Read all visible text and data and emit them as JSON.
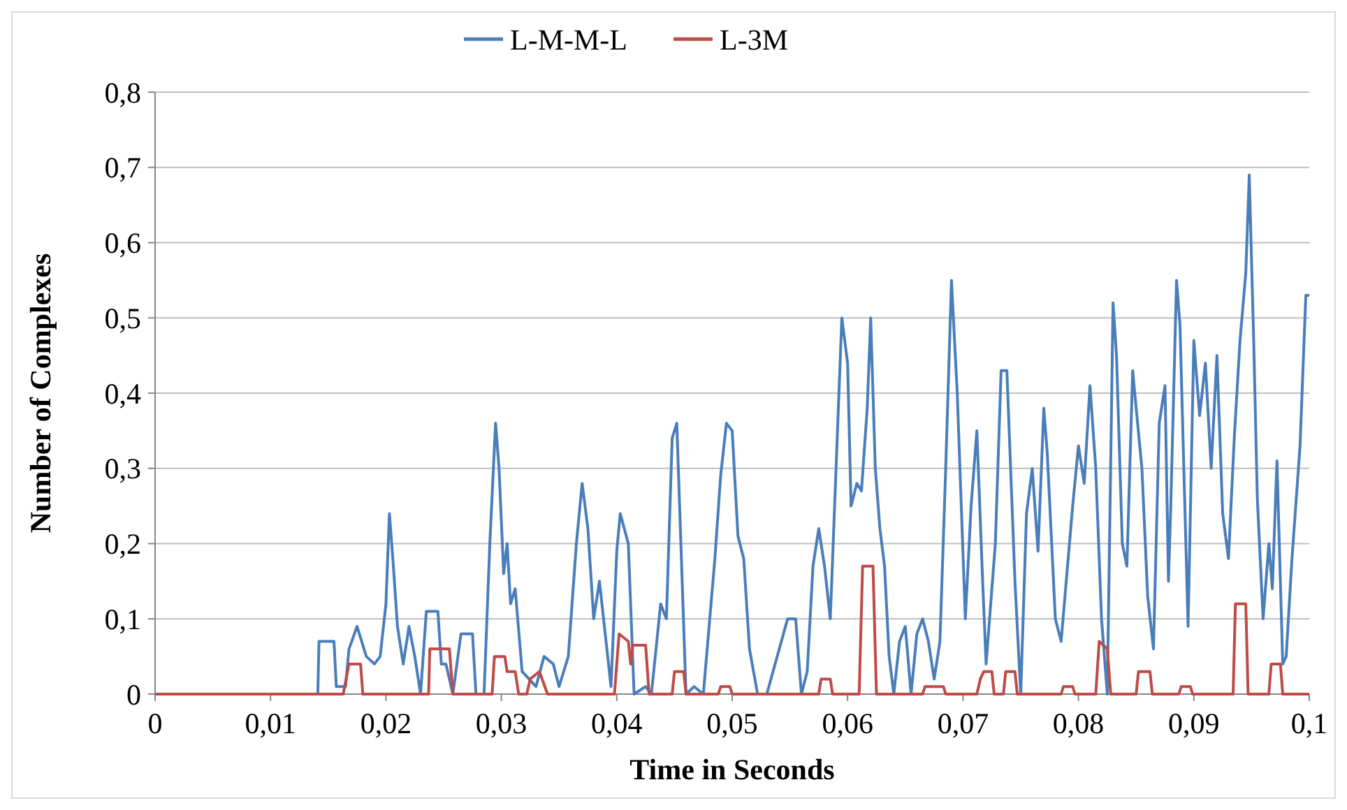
{
  "chart_data": {
    "type": "line",
    "xlabel": "Time in Seconds",
    "ylabel": "Number of Complexes",
    "xlim": [
      0,
      0.1
    ],
    "xticks": [
      0,
      {
        "value": 0.01,
        "label": "0,01"
      },
      {
        "value": 0.02,
        "label": "0,02"
      },
      {
        "value": 0.03,
        "label": "0,03"
      },
      {
        "value": 0.04,
        "label": "0,04"
      },
      {
        "value": 0.05,
        "label": "0,05"
      },
      {
        "value": 0.06,
        "label": "0,06"
      },
      {
        "value": 0.07,
        "label": "0,07"
      },
      {
        "value": 0.08,
        "label": "0,08"
      },
      {
        "value": 0.09,
        "label": "0,09"
      },
      {
        "value": 0.1,
        "label": "0,1"
      }
    ],
    "ylim": [
      0,
      0.8
    ],
    "yticks": [
      0,
      {
        "value": 0.1,
        "label": "0,1"
      },
      {
        "value": 0.2,
        "label": "0,2"
      },
      {
        "value": 0.3,
        "label": "0,3"
      },
      {
        "value": 0.4,
        "label": "0,4"
      },
      {
        "value": 0.5,
        "label": "0,5"
      },
      {
        "value": 0.6,
        "label": "0,6"
      },
      {
        "value": 0.7,
        "label": "0,7"
      },
      {
        "value": 0.8,
        "label": "0,8"
      }
    ],
    "grid": "y",
    "legend": "top",
    "line_style": "solid",
    "series": [
      {
        "name": "L-M-M-L",
        "color": "#4a7ebb",
        "x": [
          0,
          0.0141,
          0.0142,
          0.0155,
          0.0157,
          0.0165,
          0.0168,
          0.0175,
          0.0183,
          0.019,
          0.0195,
          0.02,
          0.0203,
          0.0206,
          0.021,
          0.0215,
          0.022,
          0.0225,
          0.023,
          0.0235,
          0.0245,
          0.0248,
          0.0252,
          0.0258,
          0.0265,
          0.0275,
          0.0278,
          0.0285,
          0.029,
          0.0295,
          0.0298,
          0.0302,
          0.0305,
          0.0308,
          0.0312,
          0.0318,
          0.033,
          0.0337,
          0.0345,
          0.035,
          0.0358,
          0.0365,
          0.037,
          0.0375,
          0.038,
          0.0385,
          0.039,
          0.0395,
          0.04,
          0.0403,
          0.041,
          0.0415,
          0.0425,
          0.043,
          0.0438,
          0.0443,
          0.0448,
          0.0452,
          0.0456,
          0.046,
          0.0467,
          0.0475,
          0.0485,
          0.049,
          0.0495,
          0.05,
          0.0505,
          0.051,
          0.0515,
          0.0522,
          0.053,
          0.0548,
          0.0555,
          0.056,
          0.0565,
          0.057,
          0.0575,
          0.058,
          0.0585,
          0.059,
          0.0595,
          0.06,
          0.0603,
          0.0608,
          0.0612,
          0.0617,
          0.062,
          0.0624,
          0.0628,
          0.0632,
          0.0636,
          0.064,
          0.0645,
          0.065,
          0.0655,
          0.066,
          0.0665,
          0.067,
          0.0675,
          0.068,
          0.0685,
          0.069,
          0.0695,
          0.0702,
          0.0707,
          0.0712,
          0.0717,
          0.072,
          0.0728,
          0.0733,
          0.0738,
          0.0745,
          0.075,
          0.0755,
          0.076,
          0.0765,
          0.077,
          0.0773,
          0.078,
          0.0785,
          0.0795,
          0.08,
          0.0805,
          0.081,
          0.0815,
          0.082,
          0.0825,
          0.083,
          0.0833,
          0.0838,
          0.0842,
          0.0847,
          0.085,
          0.0855,
          0.086,
          0.0865,
          0.087,
          0.0875,
          0.0878,
          0.088,
          0.0885,
          0.0888,
          0.0895,
          0.09,
          0.0905,
          0.091,
          0.0915,
          0.092,
          0.0925,
          0.093,
          0.0935,
          0.094,
          0.0945,
          0.0948,
          0.0952,
          0.0955,
          0.096,
          0.0965,
          0.0968,
          0.0972,
          0.0977,
          0.098,
          0.0985,
          0.0992,
          0.0997,
          0.1
        ],
        "values": [
          0,
          0,
          0.07,
          0.07,
          0.01,
          0.01,
          0.06,
          0.09,
          0.05,
          0.04,
          0.05,
          0.12,
          0.24,
          0.18,
          0.09,
          0.04,
          0.09,
          0.05,
          0,
          0.11,
          0.11,
          0.04,
          0.04,
          0,
          0.08,
          0.08,
          0,
          0,
          0.2,
          0.36,
          0.3,
          0.16,
          0.2,
          0.12,
          0.14,
          0.03,
          0.01,
          0.05,
          0.04,
          0.01,
          0.05,
          0.2,
          0.28,
          0.22,
          0.1,
          0.15,
          0.08,
          0.01,
          0.19,
          0.24,
          0.2,
          0,
          0.01,
          0,
          0.12,
          0.1,
          0.34,
          0.36,
          0.18,
          0,
          0.01,
          0,
          0.18,
          0.29,
          0.36,
          0.35,
          0.21,
          0.18,
          0.06,
          0,
          0,
          0.1,
          0.1,
          0,
          0.03,
          0.17,
          0.22,
          0.17,
          0.1,
          0.3,
          0.5,
          0.44,
          0.25,
          0.28,
          0.27,
          0.38,
          0.5,
          0.3,
          0.22,
          0.17,
          0.05,
          0,
          0.07,
          0.09,
          0,
          0.08,
          0.1,
          0.07,
          0.02,
          0.07,
          0.3,
          0.55,
          0.4,
          0.1,
          0.25,
          0.35,
          0.15,
          0.04,
          0.2,
          0.43,
          0.43,
          0.15,
          0,
          0.24,
          0.3,
          0.19,
          0.38,
          0.32,
          0.1,
          0.07,
          0.25,
          0.33,
          0.28,
          0.41,
          0.3,
          0.1,
          0,
          0.52,
          0.45,
          0.2,
          0.17,
          0.43,
          0.38,
          0.3,
          0.13,
          0.06,
          0.36,
          0.41,
          0.15,
          0.25,
          0.55,
          0.49,
          0.09,
          0.47,
          0.37,
          0.44,
          0.3,
          0.45,
          0.24,
          0.18,
          0.34,
          0.47,
          0.56,
          0.69,
          0.46,
          0.26,
          0.1,
          0.2,
          0.14,
          0.31,
          0.04,
          0.05,
          0.18,
          0.33,
          0.53,
          0.53
        ]
      },
      {
        "name": "L-3M",
        "color": "#be4b48",
        "x": [
          0,
          0.0163,
          0.0168,
          0.0178,
          0.018,
          0.0237,
          0.0238,
          0.0255,
          0.0258,
          0.0292,
          0.0294,
          0.0303,
          0.0305,
          0.0312,
          0.0315,
          0.0322,
          0.0325,
          0.0333,
          0.034,
          0.0398,
          0.0402,
          0.041,
          0.0412,
          0.0414,
          0.0425,
          0.0428,
          0.0448,
          0.045,
          0.0458,
          0.046,
          0.0488,
          0.049,
          0.0498,
          0.05,
          0.0575,
          0.0577,
          0.0585,
          0.0587,
          0.061,
          0.0613,
          0.0622,
          0.0625,
          0.0665,
          0.0667,
          0.0683,
          0.0685,
          0.0712,
          0.0715,
          0.0718,
          0.0725,
          0.0727,
          0.0735,
          0.0737,
          0.0745,
          0.0747,
          0.0785,
          0.0787,
          0.0795,
          0.0797,
          0.0815,
          0.0818,
          0.0825,
          0.0828,
          0.085,
          0.0852,
          0.0862,
          0.0864,
          0.0887,
          0.0889,
          0.0897,
          0.0899,
          0.0934,
          0.0936,
          0.0945,
          0.0947,
          0.0965,
          0.0967,
          0.0975,
          0.0977,
          0.1
        ],
        "values": [
          0,
          0,
          0.04,
          0.04,
          0,
          0,
          0.06,
          0.06,
          0,
          0,
          0.05,
          0.05,
          0.03,
          0.03,
          0,
          0,
          0.02,
          0.03,
          0,
          0,
          0.08,
          0.07,
          0.04,
          0.065,
          0.065,
          0,
          0,
          0.03,
          0.03,
          0,
          0,
          0.01,
          0.01,
          0,
          0,
          0.02,
          0.02,
          0,
          0,
          0.17,
          0.17,
          0,
          0,
          0.01,
          0.01,
          0,
          0,
          0.02,
          0.03,
          0.03,
          0,
          0,
          0.03,
          0.03,
          0,
          0,
          0.01,
          0.01,
          0,
          0,
          0.07,
          0.06,
          0,
          0,
          0.03,
          0.03,
          0,
          0,
          0.01,
          0.01,
          0,
          0,
          0.12,
          0.12,
          0,
          0,
          0.04,
          0.04,
          0,
          0
        ]
      }
    ]
  }
}
